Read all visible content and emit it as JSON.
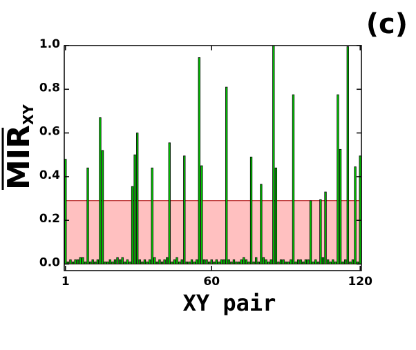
{
  "chart_data": {
    "type": "bar",
    "annotation": "(c)",
    "xlabel": "XY pair",
    "ylabel": "MIR",
    "ylabel_sub": "XY",
    "x": [
      1,
      2,
      3,
      4,
      5,
      6,
      7,
      8,
      9,
      10,
      11,
      12,
      13,
      14,
      15,
      16,
      17,
      18,
      19,
      20,
      21,
      22,
      23,
      24,
      25,
      26,
      27,
      28,
      29,
      30,
      31,
      32,
      33,
      34,
      35,
      36,
      37,
      38,
      39,
      40,
      41,
      42,
      43,
      44,
      45,
      46,
      47,
      48,
      49,
      50,
      51,
      52,
      53,
      54,
      55,
      56,
      57,
      58,
      59,
      60,
      61,
      62,
      63,
      64,
      65,
      66,
      67,
      68,
      69,
      70,
      71,
      72,
      73,
      74,
      75,
      76,
      77,
      78,
      79,
      80,
      81,
      82,
      83,
      84,
      85,
      86,
      87,
      88,
      89,
      90,
      91,
      92,
      93,
      94,
      95,
      96,
      97,
      98,
      99,
      100,
      101,
      102,
      103,
      104,
      105,
      106,
      107,
      108,
      109,
      110,
      111,
      112,
      113,
      114,
      115,
      116,
      117,
      118,
      119,
      120
    ],
    "values": [
      0.48,
      0.01,
      0.02,
      0.01,
      0.02,
      0.02,
      0.03,
      0.03,
      0.01,
      0.44,
      0.01,
      0.02,
      0.01,
      0.02,
      0.67,
      0.52,
      0.01,
      0.01,
      0.02,
      0.01,
      0.02,
      0.03,
      0.02,
      0.03,
      0.01,
      0.02,
      0.01,
      0.355,
      0.5,
      0.6,
      0.02,
      0.01,
      0.02,
      0.01,
      0.02,
      0.44,
      0.03,
      0.01,
      0.02,
      0.01,
      0.02,
      0.03,
      0.555,
      0.01,
      0.02,
      0.03,
      0.01,
      0.02,
      0.495,
      0.01,
      0.01,
      0.02,
      0.01,
      0.02,
      0.945,
      0.45,
      0.02,
      0.02,
      0.01,
      0.02,
      0.01,
      0.02,
      0.01,
      0.02,
      0.02,
      0.81,
      0.02,
      0.01,
      0.02,
      0.01,
      0.01,
      0.02,
      0.03,
      0.02,
      0.01,
      0.49,
      0.01,
      0.03,
      0.01,
      0.365,
      0.03,
      0.02,
      0.01,
      0.02,
      1.0,
      0.44,
      0.01,
      0.02,
      0.02,
      0.01,
      0.01,
      0.02,
      0.775,
      0.01,
      0.02,
      0.02,
      0.01,
      0.02,
      0.02,
      0.29,
      0.01,
      0.02,
      0.01,
      0.295,
      0.03,
      0.33,
      0.02,
      0.01,
      0.02,
      0.01,
      0.775,
      0.525,
      0.01,
      0.02,
      0.995,
      0.01,
      0.02,
      0.445,
      0.01,
      0.495
    ],
    "color": "#00cc00",
    "band": [
      0,
      0.29
    ],
    "band_color": "#ffc0c0",
    "xlim": [
      0.5,
      120.5
    ],
    "xticks": [
      1,
      60,
      120
    ],
    "ylim": [
      -0.03,
      1.0
    ],
    "yticks": [
      {
        "value": 0,
        "label": "0.0"
      },
      0.2,
      0.4,
      0.6,
      0.8,
      {
        "value": 1,
        "label": "1.0"
      }
    ]
  }
}
